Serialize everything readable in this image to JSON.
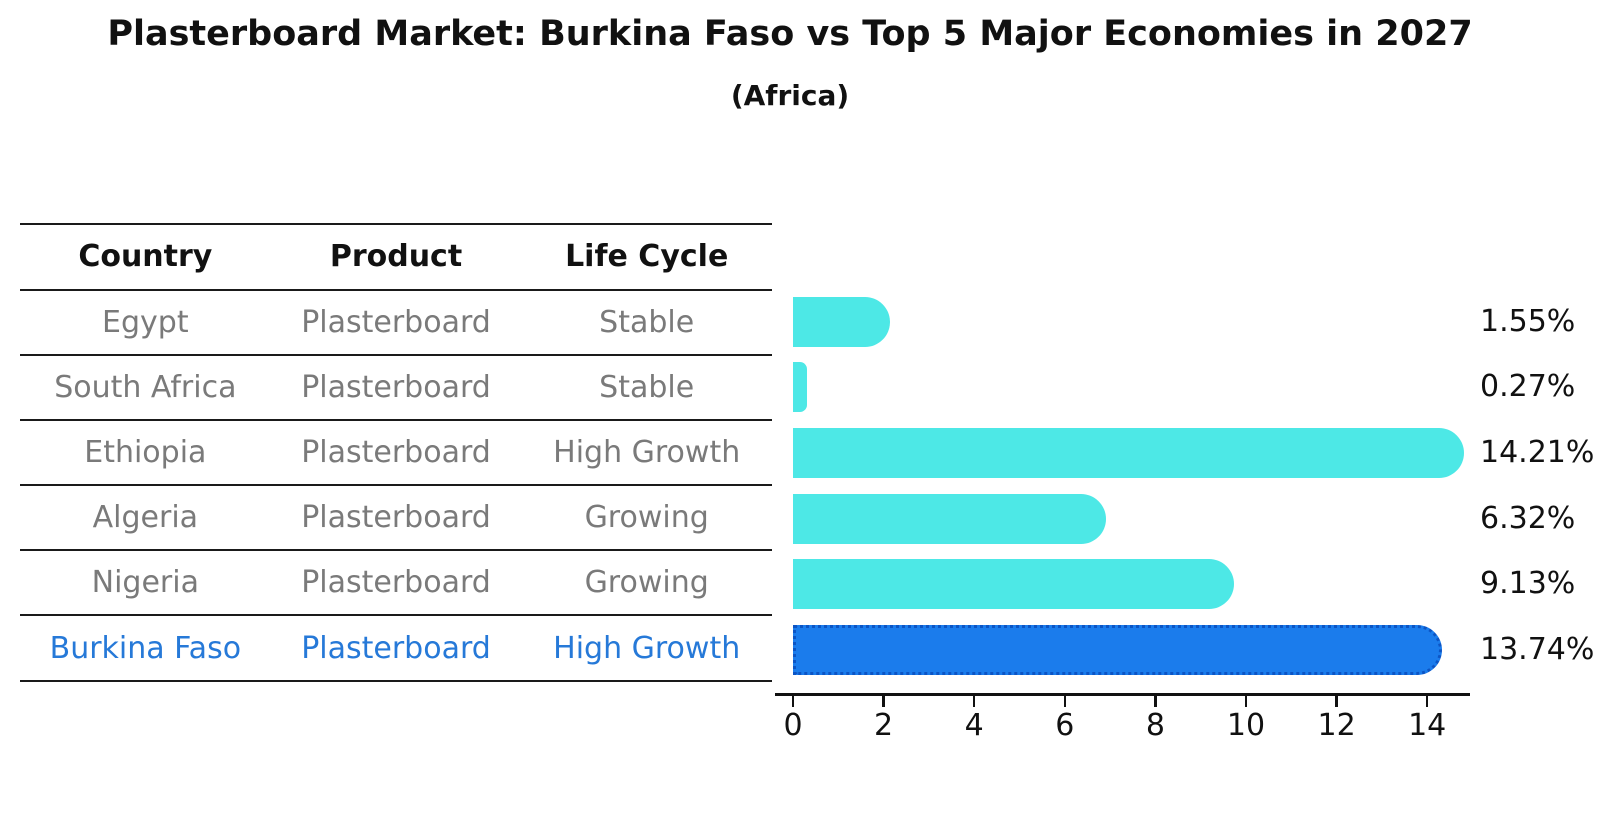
{
  "title": "Plasterboard Market: Burkina Faso vs Top 5 Major Economies in 2027",
  "subtitle": "(Africa)",
  "table": {
    "headers": [
      "Country",
      "Product",
      "Life Cycle"
    ],
    "rows": [
      {
        "country": "Egypt",
        "product": "Plasterboard",
        "life_cycle": "Stable",
        "highlight": false
      },
      {
        "country": "South Africa",
        "product": "Plasterboard",
        "life_cycle": "Stable",
        "highlight": false
      },
      {
        "country": "Ethiopia",
        "product": "Plasterboard",
        "life_cycle": "High Growth",
        "highlight": false
      },
      {
        "country": "Algeria",
        "product": "Plasterboard",
        "life_cycle": "Growing",
        "highlight": false
      },
      {
        "country": "Nigeria",
        "product": "Plasterboard",
        "life_cycle": "Growing",
        "highlight": true
      }
    ],
    "highlight_row": {
      "country": "Burkina Faso",
      "product": "Plasterboard",
      "life_cycle": "High Growth",
      "highlight": true
    }
  },
  "chart_data": {
    "type": "bar",
    "orientation": "horizontal",
    "title": "Plasterboard Market: Burkina Faso vs Top 5 Major Economies in 2027",
    "subtitle": "(Africa)",
    "categories": [
      "Egypt",
      "South Africa",
      "Ethiopia",
      "Algeria",
      "Nigeria",
      "Burkina Faso"
    ],
    "values": [
      1.55,
      0.27,
      14.21,
      6.32,
      9.13,
      13.74
    ],
    "value_labels": [
      "1.55%",
      "0.27%",
      "14.21%",
      "6.32%",
      "9.13%",
      "13.74%"
    ],
    "highlight_index": 5,
    "xticks": [
      0,
      2,
      4,
      6,
      8,
      10,
      12,
      14
    ],
    "xlim": [
      -0.4,
      15
    ],
    "grid": false,
    "legend": false,
    "bar_color": "#4DE8E6",
    "highlight_bar_color": "#1B7CEC",
    "highlight_bar_edge_color": "#0C55C5",
    "highlight_text_color": "#2679d8",
    "text_color": "#7a7a7a"
  }
}
